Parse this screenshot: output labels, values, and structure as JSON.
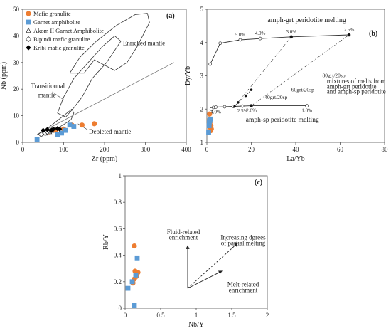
{
  "chart_data": [
    {
      "panel": "(a)",
      "type": "scatter",
      "xlabel": "Zr (ppm)",
      "ylabel": "Nb (ppm)",
      "xlim": [
        0,
        400
      ],
      "ylim": [
        0,
        50
      ],
      "xticks": [
        0,
        100,
        200,
        300,
        400
      ],
      "yticks": [
        0,
        10,
        20,
        30,
        40,
        50
      ],
      "legend_position": "top-left",
      "series": [
        {
          "name": "Mafic granulite",
          "marker": "circle",
          "color": "#ed7d31",
          "points": [
            [
              65,
              4
            ],
            [
              80,
              4.5
            ],
            [
              100,
              5
            ],
            [
              120,
              6.5
            ],
            [
              145,
              6.5
            ],
            [
              175,
              7
            ]
          ]
        },
        {
          "name": "Garnet amphibolite",
          "marker": "square",
          "color": "#5b9bd5",
          "points": [
            [
              35,
              1
            ],
            [
              85,
              3
            ],
            [
              95,
              3.5
            ],
            [
              105,
              4.5
            ],
            [
              115,
              6.5
            ],
            [
              125,
              6
            ]
          ]
        },
        {
          "name": "Akom II Garnet Amphibolite",
          "marker": "triangle-open",
          "color": "#333333",
          "points": [
            [
              55,
              3.5
            ],
            [
              65,
              4
            ],
            [
              70,
              4.5
            ]
          ]
        },
        {
          "name": "Bipindi mafic granulite",
          "marker": "diamond-open",
          "color": "#333333",
          "points": [
            [
              45,
              3
            ],
            [
              55,
              3.5
            ],
            [
              60,
              4
            ]
          ]
        },
        {
          "name": "Kribi mafic granulite",
          "marker": "diamond",
          "color": "#000000",
          "points": [
            [
              50,
              4.5
            ],
            [
              60,
              4.8
            ],
            [
              70,
              4.5
            ],
            [
              75,
              5
            ],
            [
              85,
              5.2
            ],
            [
              90,
              5
            ]
          ]
        }
      ],
      "annotations": [
        "Enriched mantle",
        "Transitionnal mantle",
        "Depleted mantle"
      ],
      "fields": {
        "enriched": [
          [
            115,
            26
          ],
          [
            140,
            32
          ],
          [
            180,
            38
          ],
          [
            230,
            44
          ],
          [
            275,
            48
          ],
          [
            305,
            48.5
          ],
          [
            310,
            45
          ],
          [
            280,
            36
          ],
          [
            255,
            30
          ],
          [
            225,
            27
          ],
          [
            200,
            29
          ],
          [
            175,
            31
          ],
          [
            150,
            26
          ]
        ],
        "transitional": [
          [
            85,
            11
          ],
          [
            100,
            17
          ],
          [
            125,
            24
          ],
          [
            160,
            30
          ],
          [
            195,
            36
          ],
          [
            225,
            40
          ],
          [
            240,
            38
          ],
          [
            205,
            30
          ],
          [
            170,
            24
          ],
          [
            145,
            17
          ],
          [
            125,
            13
          ],
          [
            105,
            9.5
          ]
        ],
        "depleted": [
          [
            50,
            4
          ],
          [
            75,
            7
          ],
          [
            100,
            10
          ],
          [
            120,
            12.5
          ],
          [
            125,
            11
          ],
          [
            118,
            8.5
          ],
          [
            98,
            6.5
          ],
          [
            75,
            4.5
          ],
          [
            55,
            3
          ]
        ],
        "trend_line": [
          [
            35,
            3
          ],
          [
            370,
            30
          ]
        ]
      }
    },
    {
      "panel": "(b)",
      "type": "line",
      "xlabel": "La/Yb",
      "ylabel": "Dy/Yb",
      "xlim": [
        0,
        80
      ],
      "ylim": [
        1,
        5
      ],
      "xticks": [
        0,
        20,
        40,
        60,
        80
      ],
      "yticks": [
        1,
        2,
        3,
        4,
        5
      ],
      "annotations": [
        "amph-grt peridotite melting",
        "amph-sp peridotite melting",
        "mixtures of melts from",
        "amph-grt peridotite",
        "and amph-sp peridotite",
        "80grt/20sp",
        "60grt/20sp",
        "40grt/20sp"
      ],
      "series": [
        {
          "name": "amph-grt peridotite melting",
          "style": "solid-open-circles",
          "x": [
            1.5,
            6,
            15,
            24,
            38,
            64
          ],
          "y": [
            3.35,
            3.98,
            4.08,
            4.12,
            4.17,
            4.23
          ],
          "labels": [
            "",
            "",
            "5.0%",
            "4.0%",
            "3.0%",
            "2.5%"
          ]
        },
        {
          "name": "amph-sp peridotite melting",
          "style": "solid-open-circles",
          "x": [
            2,
            3,
            4,
            8,
            12,
            16,
            20,
            45
          ],
          "y": [
            2.0,
            2.05,
            2.06,
            2.07,
            2.08,
            2.09,
            2.1,
            2.1
          ],
          "labels": [
            "",
            "",
            "4.0%",
            "",
            "",
            "2.5%",
            "2.0%",
            "1.0%"
          ]
        },
        {
          "name": "mixing 80grt/20sp",
          "style": "dotted-filled",
          "x": [
            12.5,
            38
          ],
          "y": [
            2.08,
            4.17
          ]
        },
        {
          "name": "mixing 60grt/20sp",
          "style": "dotted-filled",
          "x": [
            14,
            17.5,
            20
          ],
          "y": [
            2.2,
            2.4,
            2.58
          ]
        },
        {
          "name": "mixing 40grt/20sp",
          "style": "dotted-filled",
          "x": [
            20,
            64
          ],
          "y": [
            2.1,
            4.23
          ]
        },
        {
          "name": "Mafic granulite",
          "style": "circle",
          "color": "#ed7d31",
          "x": [
            1.2,
            1.4,
            1.8,
            1.5,
            1.7,
            2.0
          ],
          "y": [
            1.85,
            1.6,
            1.5,
            1.45,
            1.35,
            1.4
          ]
        },
        {
          "name": "Garnet amphibolite",
          "style": "square",
          "color": "#5b9bd5",
          "x": [
            0.8,
            1.0,
            1.1,
            1.3,
            1.5
          ],
          "y": [
            1.3,
            1.5,
            1.6,
            1.65,
            1.7
          ]
        }
      ]
    },
    {
      "panel": "(c)",
      "type": "scatter",
      "xlabel": "Nb/Y",
      "ylabel": "Rb/Y",
      "xlim": [
        0,
        2
      ],
      "ylim": [
        0,
        1
      ],
      "xticks": [
        "0",
        "0.5",
        "1",
        "1.5",
        "2"
      ],
      "yticks": [
        "0",
        "0.2",
        "0.4",
        "0.6",
        "0.8",
        "1"
      ],
      "annotations": [
        "Fluid-related",
        "enrichment",
        "Increasing dgrees",
        "of partial melting",
        "Melt-related",
        "enrichment"
      ],
      "series": [
        {
          "name": "Mafic granulite",
          "marker": "circle",
          "color": "#ed7d31",
          "x": [
            0.13,
            0.14,
            0.18,
            0.15,
            0.16,
            0.13,
            0.11
          ],
          "y": [
            0.47,
            0.28,
            0.27,
            0.25,
            0.24,
            0.22,
            0.19
          ]
        },
        {
          "name": "Garnet amphibolite",
          "marker": "square",
          "color": "#5b9bd5",
          "x": [
            0.17,
            0.15,
            0.1,
            0.04,
            0.13
          ],
          "y": [
            0.38,
            0.25,
            0.2,
            0.15,
            0.02
          ]
        }
      ]
    }
  ]
}
